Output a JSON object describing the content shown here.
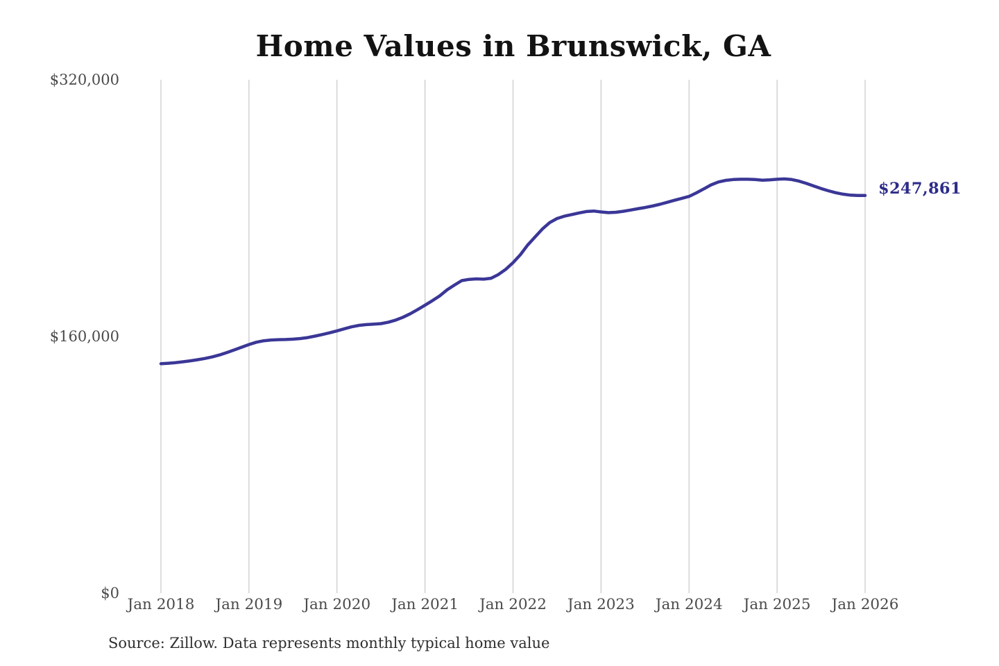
{
  "colors": {
    "line": "#3b3797",
    "end_label": "#2d2c89",
    "gridline": "#c7c7c7",
    "title_text": "#131313",
    "axis_text": "#4a4a4a",
    "background": "#ffffff"
  },
  "chart_data": {
    "type": "line",
    "title": "Home Values in Brunswick, GA",
    "xlabel": "",
    "ylabel": "",
    "ylim": [
      0,
      320000
    ],
    "grid": "vertical-only",
    "legend": "none",
    "x_unit": "month",
    "x_tick_labels": [
      "Jan 2018",
      "Jan 2019",
      "Jan 2020",
      "Jan 2021",
      "Jan 2022",
      "Jan 2023",
      "Jan 2024",
      "Jan 2025",
      "Jan 2026"
    ],
    "y_tick_labels": [
      "$0",
      "$160,000",
      "$320,000"
    ],
    "end_label": "$247,861",
    "end_value": 247861,
    "source": "Source: Zillow. Data represents monthly typical home value",
    "series": [
      {
        "name": "Typical home value",
        "start": "Jan 2018",
        "end": "Jan 2026",
        "interval": "monthly",
        "values": [
          143000,
          143300,
          143700,
          144200,
          144800,
          145500,
          146300,
          147300,
          148500,
          150000,
          151600,
          153300,
          155000,
          156400,
          157300,
          157800,
          158000,
          158100,
          158300,
          158700,
          159300,
          160200,
          161200,
          162300,
          163500,
          164800,
          166000,
          166900,
          167400,
          167700,
          168000,
          168900,
          170200,
          172000,
          174200,
          176800,
          179500,
          182300,
          185300,
          189000,
          192000,
          194800,
          195600,
          195900,
          195700,
          196300,
          198600,
          201800,
          206000,
          211000,
          217000,
          222000,
          227000,
          231000,
          233500,
          235000,
          236000,
          237000,
          237900,
          238200,
          237600,
          237200,
          237400,
          238000,
          238800,
          239600,
          240400,
          241300,
          242400,
          243600,
          244900,
          246100,
          247300,
          249500,
          252000,
          254500,
          256300,
          257300,
          257800,
          258000,
          258000,
          257800,
          257400,
          257600,
          258000,
          258200,
          257800,
          256800,
          255400,
          253800,
          252200,
          250800,
          249600,
          248700,
          248100,
          247900,
          247861
        ]
      }
    ]
  }
}
